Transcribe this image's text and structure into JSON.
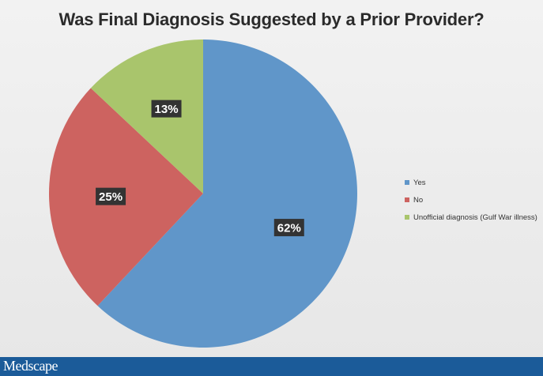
{
  "chart_data": {
    "type": "pie",
    "title": "Was Final Diagnosis Suggested by a Prior Provider?",
    "categories": [
      "Yes",
      "No",
      "Unofficial diagnosis (Gulf War illness)"
    ],
    "values": [
      62,
      25,
      13
    ],
    "labels": [
      "62%",
      "25%",
      "13%"
    ],
    "colors": [
      "#6096c9",
      "#cd6360",
      "#a9c56c"
    ],
    "legend_position": "right"
  },
  "footer": {
    "brand": "Medscape"
  }
}
